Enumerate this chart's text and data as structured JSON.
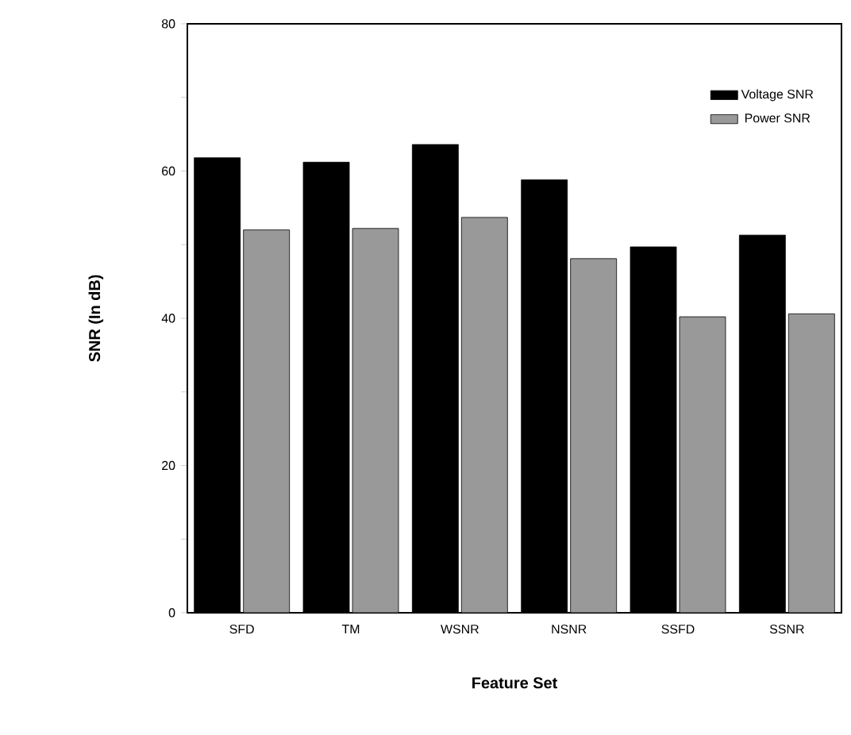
{
  "chart_data": {
    "type": "bar",
    "xlabel": "Feature Set",
    "ylabel": "SNR (In dB)",
    "categories": [
      "SFD",
      "TM",
      "WSNR",
      "NSNR",
      "SSFD",
      "SSNR"
    ],
    "series": [
      {
        "name": "Voltage SNR",
        "color": "#000000",
        "values": [
          61.8,
          61.2,
          63.6,
          58.8,
          49.7,
          51.3
        ]
      },
      {
        "name": "Power SNR",
        "color": "#999999",
        "values": [
          52.0,
          52.2,
          53.7,
          48.1,
          40.2,
          40.6
        ]
      }
    ],
    "ylim": [
      0,
      80
    ],
    "yticks": [
      0,
      {
        "value": 10,
        "label": null
      },
      20,
      {
        "value": 30,
        "label": null
      },
      40,
      {
        "value": 50,
        "label": null
      },
      60,
      {
        "value": 70,
        "label": null
      },
      80
    ],
    "grid": false,
    "legend": "top right"
  }
}
